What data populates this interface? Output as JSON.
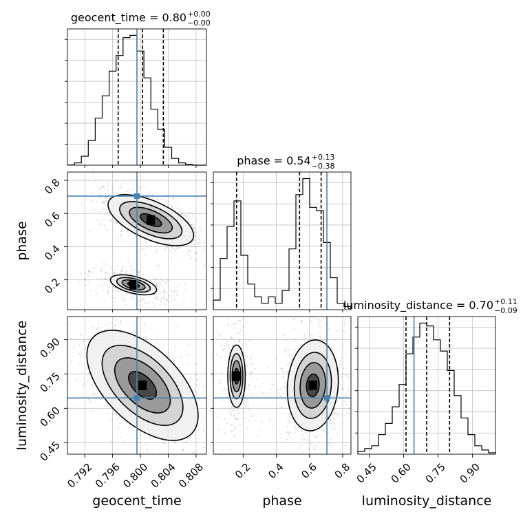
{
  "chart_data": {
    "type": "corner",
    "parameters": [
      "geocent_time",
      "phase",
      "luminosity_distance"
    ],
    "truths": {
      "geocent_time": 0.7995,
      "phase": 0.705,
      "luminosity_distance": 0.645
    },
    "truth_color": "#4682b4",
    "panels": {
      "geocent_time": {
        "title": {
          "main": "geocent_time = 0.80",
          "sup": "+0.00",
          "sub": "−0.00"
        },
        "range": [
          0.7895,
          0.8095
        ],
        "ticks": [
          0.792,
          0.796,
          0.8,
          0.804,
          0.808
        ],
        "tick_labels": [
          "0.792",
          "0.796",
          "0.800",
          "0.804",
          "0.808"
        ],
        "quantiles": [
          0.7968,
          0.8003,
          0.8033
        ],
        "hist": [
          0.1,
          1,
          4,
          11,
          21,
          31,
          42,
          49,
          57,
          58,
          51,
          39,
          25,
          16,
          8,
          3,
          1,
          0.3,
          0,
          0
        ]
      },
      "phase": {
        "title": {
          "main": "phase = 0.54",
          "sup": "+0.13",
          "sub": "−0.38"
        },
        "range": [
          0.02,
          0.85
        ],
        "ticks": [
          0.2,
          0.4,
          0.6,
          0.8
        ],
        "tick_labels": [
          "0.2",
          "0.4",
          "0.6",
          "0.8"
        ],
        "quantiles": [
          0.16,
          0.54,
          0.67
        ],
        "hist": [
          3,
          16,
          26,
          34,
          17,
          8,
          4,
          2,
          4,
          2,
          6,
          19,
          36,
          41,
          32,
          31,
          21,
          10,
          2,
          1
        ]
      },
      "luminosity_distance": {
        "title": {
          "main": "luminosity_distance = 0.70",
          "sup": "+0.11",
          "sub": "−0.09"
        },
        "range": [
          0.4,
          1.0
        ],
        "ticks": [
          0.45,
          0.6,
          0.75,
          0.9
        ],
        "tick_labels": [
          "0.45",
          "0.60",
          "0.75",
          "0.90"
        ],
        "quantiles": [
          0.61,
          0.7,
          0.8
        ],
        "hist": [
          1,
          2,
          3,
          7,
          11,
          17,
          25,
          36,
          42,
          47,
          46,
          41,
          37,
          30,
          21,
          13,
          7,
          3,
          1.5,
          0.5
        ]
      }
    },
    "ylabels": {
      "phase": "phase",
      "luminosity_distance": "luminosity_distance"
    },
    "xlabels": {
      "geocent_time": "geocent_time",
      "phase": "phase",
      "luminosity_distance": "luminosity_distance"
    },
    "ytick_labels": {
      "phase": [
        "0.2",
        "0.4",
        "0.6",
        "0.8"
      ],
      "luminosity_distance": [
        "0.45",
        "0.60",
        "0.75",
        "0.90"
      ]
    },
    "phase_vs_geocent_modes": [
      {
        "x": 0.8015,
        "y": 0.56,
        "sx": 0.0028,
        "sy": 0.07,
        "rho": -0.6,
        "weight": 0.68
      },
      {
        "x": 0.799,
        "y": 0.17,
        "sx": 0.0022,
        "sy": 0.04,
        "rho": -0.5,
        "weight": 0.32
      }
    ],
    "distance_vs_geocent_mode": {
      "x": 0.8003,
      "y": 0.7,
      "sx": 0.003,
      "sy": 0.09,
      "rho": -0.55
    },
    "distance_vs_phase_modes": [
      {
        "x": 0.62,
        "y": 0.7,
        "sx": 0.07,
        "sy": 0.09,
        "rho": 0.1,
        "weight": 0.68
      },
      {
        "x": 0.16,
        "y": 0.74,
        "sx": 0.035,
        "sy": 0.09,
        "rho": 0.0,
        "weight": 0.32
      }
    ],
    "grid": true
  }
}
